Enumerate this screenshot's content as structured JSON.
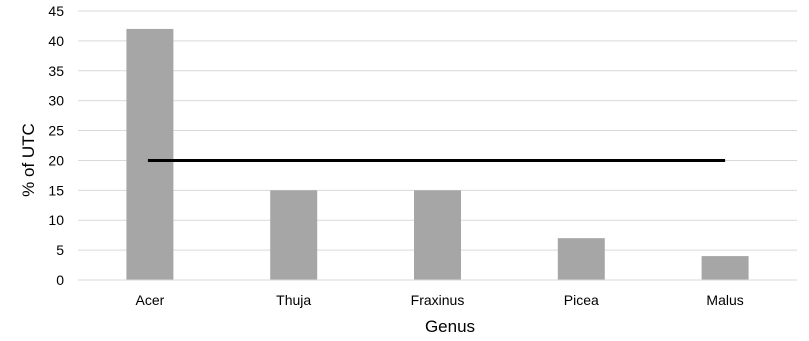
{
  "chart_data": {
    "type": "bar",
    "categories": [
      "Acer",
      "Thuja",
      "Fraxinus",
      "Picea",
      "Malus"
    ],
    "values": [
      42,
      15,
      15,
      7,
      4
    ],
    "title": "",
    "xlabel": "Genus",
    "ylabel": "% of UTC",
    "ylim": [
      0,
      45
    ],
    "yticks": [
      0,
      5,
      10,
      15,
      20,
      25,
      30,
      35,
      40,
      45
    ],
    "grid": true,
    "legend": "none",
    "reference_line": {
      "value": 20,
      "color": "#000000"
    },
    "colors": {
      "bar": "#a6a6a6",
      "grid": "#d9d9d9",
      "axis": "#d9d9d9"
    }
  }
}
